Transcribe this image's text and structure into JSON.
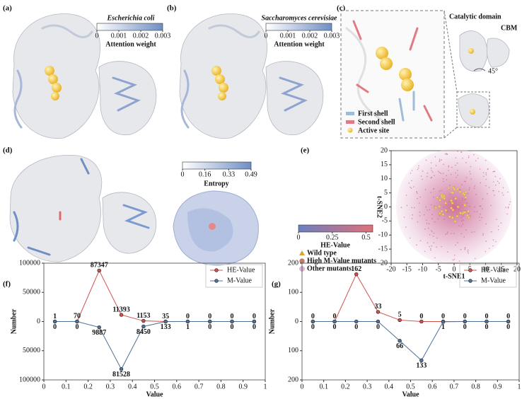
{
  "panels": {
    "a": {
      "label": "(a)",
      "species": "Escherichia coli",
      "colorbar": {
        "title": "Attention weight",
        "ticks": [
          0,
          0.001,
          0.002,
          0.003
        ],
        "clim": [
          0,
          0.003
        ]
      }
    },
    "b": {
      "label": "(b)",
      "species": "Saccharomyces cerevisiae",
      "colorbar": {
        "title": "Attention weight",
        "ticks": [
          0,
          0.001,
          0.002,
          0.003
        ],
        "clim": [
          0,
          0.003
        ]
      }
    },
    "c": {
      "label": "(c)",
      "legend": [
        "First shell",
        "Second shell",
        "Active site"
      ],
      "catalytic": "Catalytic domain",
      "cbm": "CBM",
      "angle": "45°"
    },
    "d": {
      "label": "(d)",
      "colorbar": {
        "title": "Entropy",
        "ticks": [
          0,
          0.16,
          0.33,
          0.49
        ],
        "clim": [
          0,
          0.49
        ]
      }
    },
    "e": {
      "label": "(e)"
    },
    "f": {
      "label": "(f)"
    },
    "g": {
      "label": "(g)"
    }
  },
  "chart_data": [
    {
      "type": "scatter",
      "xlabel": "t-SNE1",
      "ylabel": "t-SNE2",
      "xlim": [
        -20,
        20
      ],
      "ylim": [
        -20,
        20
      ],
      "xticks": [
        -20,
        -15,
        -10,
        -5,
        0,
        5,
        10,
        15,
        20
      ],
      "yticks": [
        -20,
        -15,
        -10,
        -5,
        0,
        5,
        10,
        15,
        20
      ],
      "colorbar": {
        "title": "HE-Value",
        "ticks": [
          0,
          0.25,
          0.5
        ],
        "clim": [
          0,
          0.55
        ],
        "colors": [
          "#6b7fc0",
          "#e0707a"
        ]
      },
      "legend": [
        {
          "name": "Wild type",
          "color": "#d9a33a",
          "marker": "triangle"
        },
        {
          "name": "High M-Value mutants",
          "color": "#c87866",
          "marker": "circle"
        },
        {
          "name": "Other mutants",
          "color": "#e6b3d6",
          "marker": "circle"
        }
      ]
    },
    {
      "type": "line",
      "xlabel": "Value",
      "ylabel": "Number",
      "x": [
        0.05,
        0.15,
        0.25,
        0.35,
        0.45,
        0.55,
        0.65,
        0.75,
        0.85,
        0.95
      ],
      "xlim": [
        0,
        1
      ],
      "xticks": [
        0,
        0.1,
        0.2,
        0.3,
        0.4,
        0.5,
        0.6,
        0.7,
        0.8,
        0.9,
        1
      ],
      "ylim": [
        -100000,
        100000
      ],
      "yticks": [
        {
          "value": -100000,
          "label": "100000"
        },
        {
          "value": -50000,
          "label": "50000"
        },
        0,
        50000,
        100000
      ],
      "legend_position": "upper right",
      "series": [
        {
          "name": "HE-Value",
          "color": "#d0504e",
          "values": [
            1,
            70,
            87347,
            11393,
            1153,
            35,
            0,
            0,
            0,
            0
          ]
        },
        {
          "name": "M-Value",
          "color": "#4f7196",
          "values": [
            0,
            0,
            -9887,
            -81528,
            -8450,
            -133,
            -1,
            0,
            0,
            0
          ],
          "value_labels": [
            "0",
            "0",
            "9887",
            "81528",
            "8450",
            "133",
            "1",
            "0",
            "0",
            "0"
          ]
        }
      ]
    },
    {
      "type": "line",
      "xlabel": "Value",
      "ylabel": "Number",
      "x": [
        0.05,
        0.15,
        0.25,
        0.35,
        0.45,
        0.55,
        0.65,
        0.75,
        0.85,
        0.95
      ],
      "xlim": [
        0,
        1
      ],
      "xticks": [
        0,
        0.1,
        0.2,
        0.3,
        0.4,
        0.5,
        0.6,
        0.7,
        0.8,
        0.9,
        1
      ],
      "ylim": [
        -200,
        200
      ],
      "yticks": [
        {
          "value": -200,
          "label": "200"
        },
        {
          "value": -100,
          "label": "100"
        },
        0,
        100,
        200
      ],
      "legend_position": "upper right",
      "series": [
        {
          "name": "HE-Value",
          "color": "#d0504e",
          "values": [
            0,
            0,
            162,
            33,
            5,
            0,
            0,
            0,
            0,
            0
          ]
        },
        {
          "name": "M-Value",
          "color": "#4f7196",
          "values": [
            0,
            0,
            0,
            0,
            -66,
            -133,
            -1,
            0,
            0,
            0
          ],
          "value_labels": [
            "0",
            "0",
            "0",
            "0",
            "66",
            "133",
            "1",
            "0",
            "0",
            "0"
          ]
        }
      ]
    }
  ]
}
